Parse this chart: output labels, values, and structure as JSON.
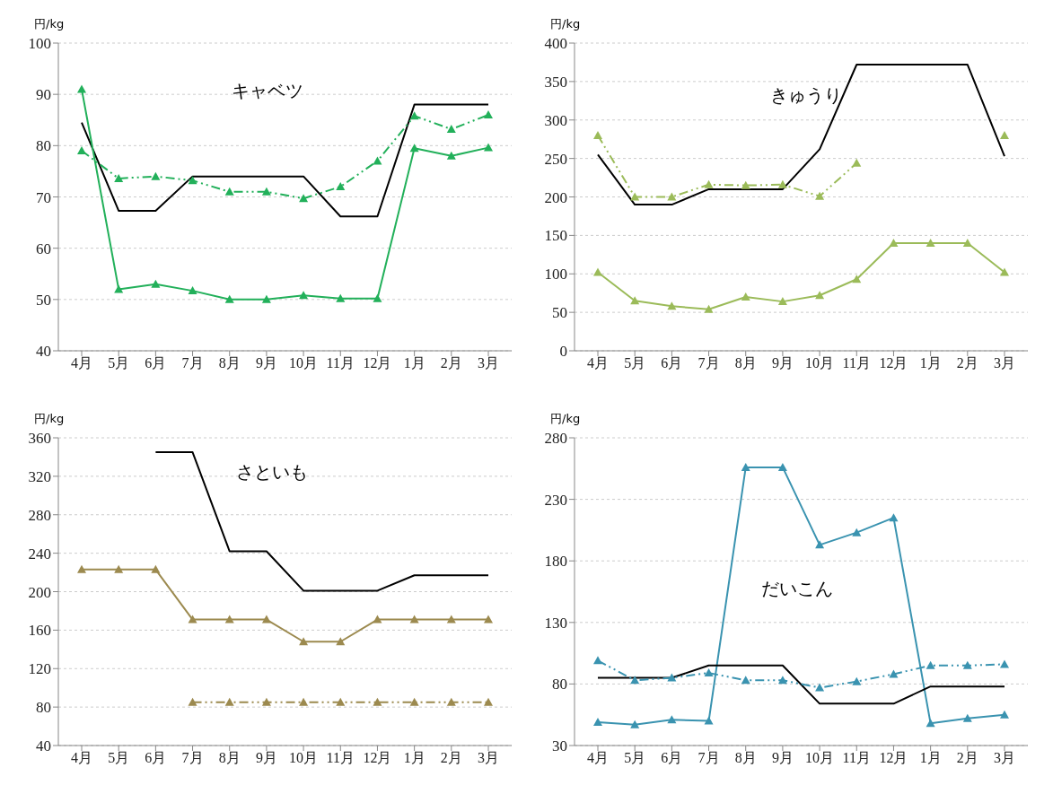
{
  "chart_data": [
    {
      "type": "line",
      "title": "キャベツ",
      "ylabel": "円/kg",
      "categories": [
        "4月",
        "5月",
        "6月",
        "7月",
        "8月",
        "9月",
        "10月",
        "11月",
        "12月",
        "1月",
        "2月",
        "3月"
      ],
      "ylim": [
        40,
        100
      ],
      "yticks": [
        40,
        50,
        60,
        70,
        80,
        90,
        100
      ],
      "grid": "y",
      "series": [
        {
          "color": "#000000",
          "marker": "none",
          "line_style": "solid",
          "values": [
            84.5,
            67.3,
            67.3,
            74,
            74,
            74,
            74,
            66.2,
            66.2,
            88,
            88,
            88
          ]
        },
        {
          "color": "#22b05a",
          "marker": "triangle",
          "line_style": "solid",
          "values": [
            91,
            52,
            53,
            51.7,
            50,
            50,
            50.8,
            50.2,
            50.2,
            79.5,
            78,
            79.6
          ]
        },
        {
          "color": "#22b05a",
          "marker": "triangle",
          "line_style": "dashed",
          "values": [
            79,
            73.6,
            74,
            73.2,
            71,
            71,
            69.7,
            72,
            77,
            85.8,
            83.2,
            86
          ]
        }
      ]
    },
    {
      "type": "line",
      "title": "きゅうり",
      "ylabel": "円/kg",
      "categories": [
        "4月",
        "5月",
        "6月",
        "7月",
        "8月",
        "9月",
        "10月",
        "11月",
        "12月",
        "1月",
        "2月",
        "3月"
      ],
      "ylim": [
        0,
        400
      ],
      "yticks": [
        0,
        50,
        100,
        150,
        200,
        250,
        300,
        350,
        400
      ],
      "grid": "y",
      "series": [
        {
          "color": "#000000",
          "marker": "none",
          "line_style": "solid",
          "values": [
            255,
            190,
            190,
            210,
            210,
            210,
            262,
            372,
            372,
            372,
            372,
            253
          ]
        },
        {
          "color": "#9bbb59",
          "marker": "triangle",
          "line_style": "dashed",
          "values": [
            280,
            200,
            200,
            216,
            215,
            216,
            201,
            244,
            null,
            null,
            null,
            280
          ]
        },
        {
          "color": "#9bbb59",
          "marker": "triangle",
          "line_style": "solid",
          "values": [
            102,
            65,
            58,
            54,
            70,
            64,
            72,
            93,
            140,
            140,
            140,
            102
          ]
        }
      ]
    },
    {
      "type": "line",
      "title": "さといも",
      "ylabel": "円/kg",
      "categories": [
        "4月",
        "5月",
        "6月",
        "7月",
        "8月",
        "9月",
        "10月",
        "11月",
        "12月",
        "1月",
        "2月",
        "3月"
      ],
      "ylim": [
        40,
        360
      ],
      "yticks": [
        40,
        80,
        120,
        160,
        200,
        240,
        280,
        320,
        360
      ],
      "grid": "y",
      "series": [
        {
          "color": "#000000",
          "marker": "none",
          "line_style": "solid",
          "values": [
            null,
            null,
            345,
            345,
            242,
            242,
            201,
            201,
            201,
            217,
            217,
            217
          ]
        },
        {
          "color": "#9c8a4f",
          "marker": "triangle",
          "line_style": "solid",
          "values": [
            223,
            223,
            223,
            171,
            171,
            171,
            148,
            148,
            171,
            171,
            171,
            171
          ]
        },
        {
          "color": "#9c8a4f",
          "marker": "triangle",
          "line_style": "dashed",
          "values": [
            null,
            null,
            null,
            85,
            85,
            85,
            85,
            85,
            85,
            85,
            85,
            85
          ]
        }
      ]
    },
    {
      "type": "line",
      "title": "だいこん",
      "ylabel": "円/kg",
      "categories": [
        "4月",
        "5月",
        "6月",
        "7月",
        "8月",
        "9月",
        "10月",
        "11月",
        "12月",
        "1月",
        "2月",
        "3月"
      ],
      "ylim": [
        30,
        280
      ],
      "yticks": [
        30,
        80,
        130,
        180,
        230,
        280
      ],
      "grid": "y",
      "series": [
        {
          "color": "#3a93b0",
          "marker": "triangle",
          "line_style": "solid",
          "values": [
            49,
            47,
            51,
            50,
            256,
            256,
            193,
            203,
            215,
            48,
            52,
            55
          ]
        },
        {
          "color": "#000000",
          "marker": "none",
          "line_style": "solid",
          "values": [
            85,
            85,
            85,
            95,
            95,
            95,
            64,
            64,
            64,
            78,
            78,
            78
          ]
        },
        {
          "color": "#3a93b0",
          "marker": "triangle",
          "line_style": "dashed",
          "values": [
            99,
            83,
            85,
            89,
            83,
            83,
            77,
            82,
            88,
            95,
            95,
            96
          ]
        }
      ]
    }
  ]
}
